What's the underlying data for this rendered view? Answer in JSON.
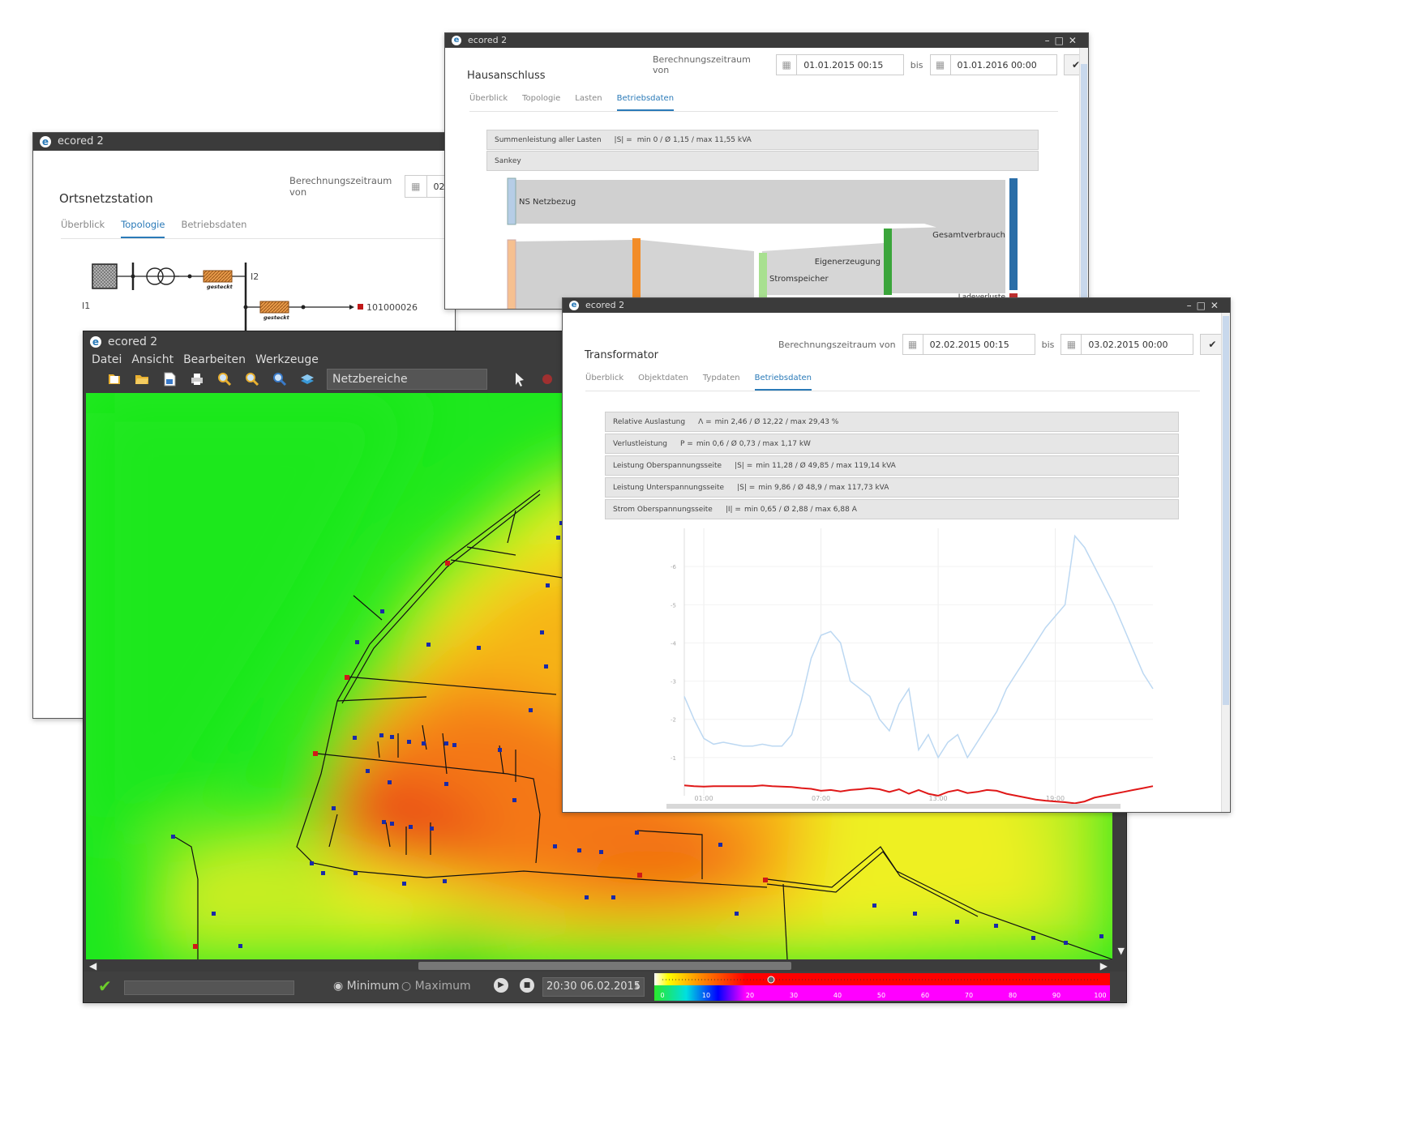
{
  "app_name": "ecored 2",
  "win_ortsnetz": {
    "title": "Ortsnetzstation",
    "range_label": "Berechnungszeitraum von",
    "range_from": "02.",
    "tabs": [
      "Überblick",
      "Topologie",
      "Betriebsdaten"
    ],
    "active_tab": "Topologie",
    "labels": {
      "l1": "I1",
      "l2": "I2",
      "plug1": "gesteckt",
      "plug2": "gesteckt",
      "node": "101000026"
    }
  },
  "win_haus": {
    "title": "Hausanschluss",
    "range_label": "Berechnungszeitraum von",
    "range_from": "01.01.2015 00:15",
    "bis": "bis",
    "range_to": "01.01.2016 00:00",
    "tabs": [
      "Überblick",
      "Topologie",
      "Lasten",
      "Betriebsdaten"
    ],
    "active_tab": "Betriebsdaten",
    "sum_label": "Summenleistung aller Lasten",
    "sum_symbol": "|S| =",
    "sum_value": "min 0 / Ø 1,15 / max 11,55  kVA",
    "sankey_label": "Sankey",
    "sankey_nodes": [
      "NS Netzbezug",
      "Gesamtverbrauch",
      "Eigenerzeugung",
      "Stromspeicher",
      "Ladeverluste"
    ]
  },
  "win_main": {
    "menu": [
      "Datei",
      "Ansicht",
      "Bearbeiten",
      "Werkzeuge"
    ],
    "layer_select": "Netzbereiche",
    "radio_min": "Minimum",
    "radio_max": "Maximum",
    "time_value": "20:30 06.02.2015",
    "scale_labels": [
      "0",
      "10",
      "20",
      "30",
      "40",
      "50",
      "60",
      "70",
      "80",
      "90",
      "100"
    ]
  },
  "win_trafo": {
    "title": "Transformator",
    "range_label": "Berechnungszeitraum von",
    "range_from": "02.02.2015 00:15",
    "bis": "bis",
    "range_to": "03.02.2015 00:00",
    "tabs": [
      "Überblick",
      "Objektdaten",
      "Typdaten",
      "Betriebsdaten"
    ],
    "active_tab": "Betriebsdaten",
    "rows": [
      {
        "label": "Relative Auslastung",
        "symbol": "Λ =",
        "value": "min 2,46 / Ø 12,22 / max 29,43  %"
      },
      {
        "label": "Verlustleistung",
        "symbol": "P =",
        "value": "min 0,6 / Ø 0,73 / max 1,17  kW"
      },
      {
        "label": "Leistung Oberspannungsseite",
        "symbol": "|S| =",
        "value": "min 11,28 / Ø 49,85 / max 119,14  kVA"
      },
      {
        "label": "Leistung Unterspannungsseite",
        "symbol": "|S| =",
        "value": "min 9,86 / Ø 48,9 / max 117,73  kVA"
      },
      {
        "label": "Strom Oberspannungsseite",
        "symbol": "|I| =",
        "value": "min 0,65 / Ø 2,88 / max 6,88  A"
      }
    ]
  },
  "chart_data": {
    "type": "line",
    "title": "",
    "xlabel": "",
    "ylabel": "",
    "x_ticks": [
      "01:00",
      "07:00",
      "13:00",
      "19:00"
    ],
    "y_ticks": [
      "1",
      "2",
      "3",
      "4",
      "5",
      "6"
    ],
    "ylim": [
      0,
      7
    ],
    "x": [
      0,
      0.5,
      1,
      1.5,
      2,
      2.5,
      3,
      3.5,
      4,
      4.5,
      5,
      5.5,
      6,
      6.5,
      7,
      7.5,
      8,
      8.5,
      9,
      9.5,
      10,
      10.5,
      11,
      11.5,
      12,
      12.5,
      13,
      13.5,
      14,
      14.5,
      15,
      15.5,
      16,
      16.5,
      17,
      17.5,
      18,
      18.5,
      19,
      19.5,
      20,
      20.5,
      21,
      21.5,
      22,
      22.5,
      23,
      23.5,
      24
    ],
    "series": [
      {
        "color": "#bcd8f2",
        "values": [
          2.6,
          2.0,
          1.5,
          1.35,
          1.4,
          1.35,
          1.3,
          1.3,
          1.35,
          1.3,
          1.3,
          1.6,
          2.5,
          3.6,
          4.2,
          4.3,
          4.0,
          3.0,
          2.8,
          2.6,
          2.0,
          1.7,
          2.4,
          2.8,
          1.2,
          1.6,
          1.0,
          1.4,
          1.6,
          1.0,
          1.4,
          1.8,
          2.2,
          2.8,
          3.2,
          3.6,
          4.0,
          4.4,
          4.7,
          5.0,
          6.8,
          6.5,
          6.0,
          5.5,
          5.0,
          4.4,
          3.8,
          3.2,
          2.8
        ]
      },
      {
        "color": "#e01818",
        "values": [
          0.12,
          0.1,
          0.09,
          0.1,
          0.1,
          0.1,
          0.1,
          0.1,
          0.12,
          0.1,
          0.09,
          0.08,
          0.05,
          0.03,
          -0.02,
          0.0,
          -0.04,
          0.0,
          0.02,
          0.05,
          0.02,
          -0.05,
          0.02,
          -0.1,
          0.0,
          -0.1,
          -0.15,
          -0.05,
          0.0,
          -0.08,
          -0.05,
          0.0,
          -0.02,
          -0.1,
          -0.15,
          -0.2,
          -0.25,
          -0.28,
          -0.3,
          -0.32,
          -0.35,
          -0.3,
          -0.2,
          -0.15,
          -0.1,
          -0.05,
          0.0,
          0.05,
          0.1
        ]
      }
    ]
  },
  "colors": {
    "accent": "#2a7ab8",
    "titlebar": "#3b3b3b",
    "toolbar": "#4a4a4a",
    "load_line": "#bcd8f2",
    "loss_line": "#e01818"
  }
}
